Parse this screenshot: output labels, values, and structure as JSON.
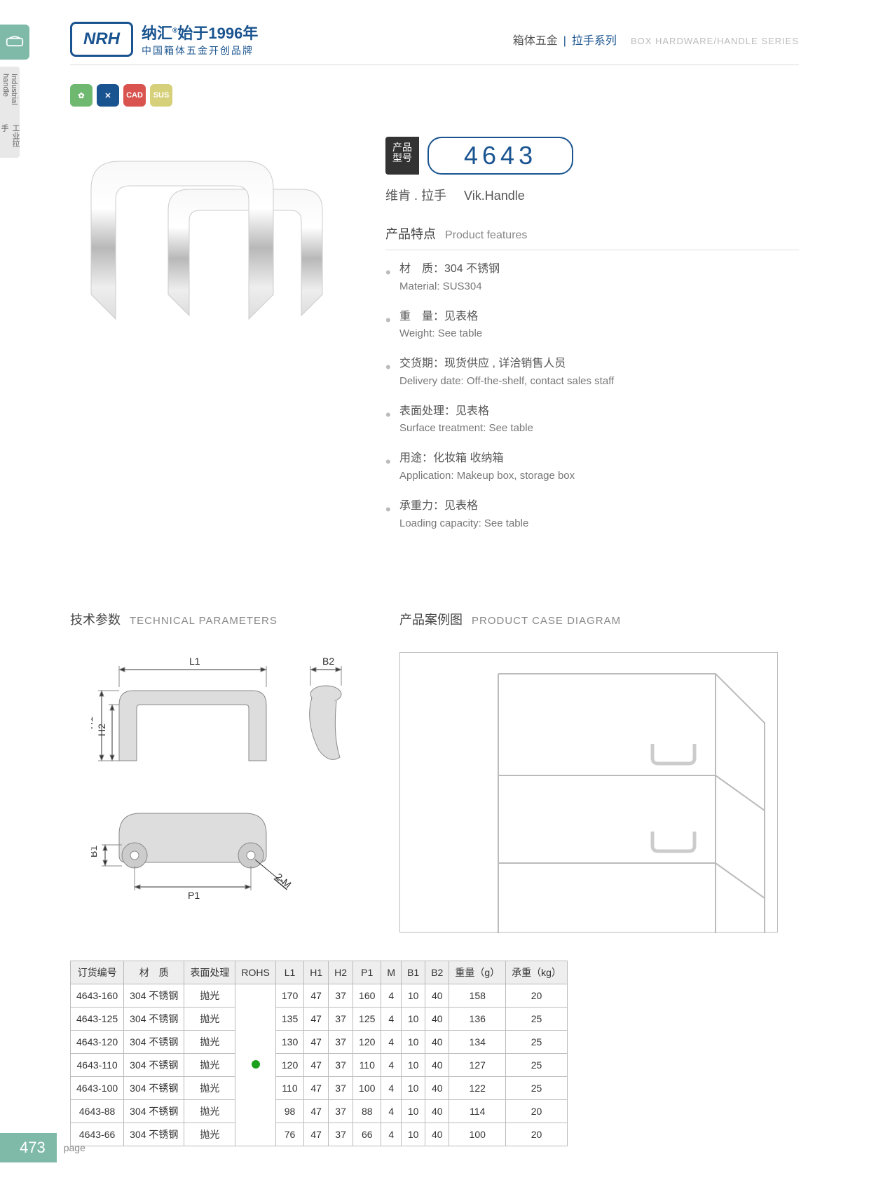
{
  "side": {
    "label_cn": "工业拉手",
    "label_en": "Industrial handle"
  },
  "logo": {
    "abbr": "NRH",
    "line1_a": "纳汇",
    "line1_b": "始于1996年",
    "line2": "中国箱体五金开创品牌"
  },
  "header": {
    "cat1": "箱体五金",
    "cat2": "拉手系列",
    "en": "BOX HARDWARE/HANDLE SERIES"
  },
  "icons": {
    "items": [
      {
        "bg": "#6fb86f",
        "glyph": "✿"
      },
      {
        "bg": "#1a5490",
        "glyph": "✕"
      },
      {
        "bg": "#d9534f",
        "glyph": "CAD"
      },
      {
        "bg": "#d6d07a",
        "glyph": "SUS"
      }
    ]
  },
  "model": {
    "label": "产品\n型号",
    "number": "4643"
  },
  "subtitle": {
    "cn": "维肯 . 拉手",
    "en": "Vik.Handle"
  },
  "features": {
    "title_cn": "产品特点",
    "title_en": "Product features",
    "items": [
      {
        "cn": "材　质：304 不锈钢",
        "en": "Material: SUS304"
      },
      {
        "cn": "重　量：见表格",
        "en": "Weight: See table"
      },
      {
        "cn": "交货期：现货供应 , 详洽销售人员",
        "en": "Delivery date: Off-the-shelf, contact sales staff"
      },
      {
        "cn": "表面处理：见表格",
        "en": "Surface treatment: See table"
      },
      {
        "cn": "用途：化妆箱 收纳箱",
        "en": "Application: Makeup box, storage box"
      },
      {
        "cn": "承重力：见表格",
        "en": "Loading capacity: See table"
      }
    ]
  },
  "sections": {
    "tech_cn": "技术参数",
    "tech_en": "TECHNICAL PARAMETERS",
    "case_cn": "产品案例图",
    "case_en": "PRODUCT CASE DIAGRAM"
  },
  "diagram": {
    "labels": {
      "L1": "L1",
      "B2": "B2",
      "H1": "H1",
      "H2": "H2",
      "B1": "B1",
      "P1": "P1",
      "M2": "2-M"
    }
  },
  "table": {
    "headers": [
      "订货编号",
      "材　质",
      "表面处理",
      "ROHS",
      "L1",
      "H1",
      "H2",
      "P1",
      "M",
      "B1",
      "B2",
      "重量（g）",
      "承重（kg）"
    ],
    "material": "304 不锈钢",
    "surface": "抛光",
    "rows": [
      {
        "code": "4643-160",
        "L1": "170",
        "H1": "47",
        "H2": "37",
        "P1": "160",
        "M": "4",
        "B1": "10",
        "B2": "40",
        "wt": "158",
        "load": "20"
      },
      {
        "code": "4643-125",
        "L1": "135",
        "H1": "47",
        "H2": "37",
        "P1": "125",
        "M": "4",
        "B1": "10",
        "B2": "40",
        "wt": "136",
        "load": "25"
      },
      {
        "code": "4643-120",
        "L1": "130",
        "H1": "47",
        "H2": "37",
        "P1": "120",
        "M": "4",
        "B1": "10",
        "B2": "40",
        "wt": "134",
        "load": "25"
      },
      {
        "code": "4643-110",
        "L1": "120",
        "H1": "47",
        "H2": "37",
        "P1": "110",
        "M": "4",
        "B1": "10",
        "B2": "40",
        "wt": "127",
        "load": "25"
      },
      {
        "code": "4643-100",
        "L1": "110",
        "H1": "47",
        "H2": "37",
        "P1": "100",
        "M": "4",
        "B1": "10",
        "B2": "40",
        "wt": "122",
        "load": "25"
      },
      {
        "code": "4643-88",
        "L1": "98",
        "H1": "47",
        "H2": "37",
        "P1": "88",
        "M": "4",
        "B1": "10",
        "B2": "40",
        "wt": "114",
        "load": "20"
      },
      {
        "code": "4643-66",
        "L1": "76",
        "H1": "47",
        "H2": "37",
        "P1": "66",
        "M": "4",
        "B1": "10",
        "B2": "40",
        "wt": "100",
        "load": "20"
      }
    ]
  },
  "footer": {
    "page": "473",
    "label": "page"
  }
}
